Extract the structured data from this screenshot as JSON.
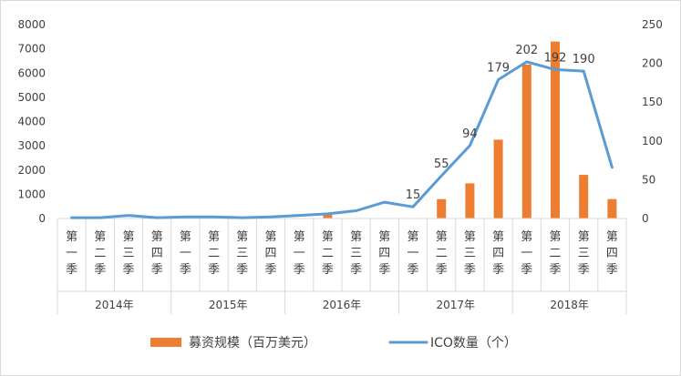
{
  "chart_data": {
    "type": "bar+line",
    "quarter_labels": [
      "第一季",
      "第二季",
      "第三季",
      "第四季"
    ],
    "years": [
      "2014年",
      "2015年",
      "2016年",
      "2017年",
      "2018年"
    ],
    "series": [
      {
        "name": "募资规模（百万美元）",
        "type": "bar",
        "axis": "left",
        "color": "#ED7D31",
        "values": [
          0,
          0,
          0,
          0,
          0,
          0,
          0,
          0,
          0,
          150,
          0,
          0,
          0,
          800,
          1450,
          3250,
          6350,
          7300,
          1800,
          800
        ]
      },
      {
        "name": "ICO数量（个）",
        "type": "line",
        "axis": "right",
        "color": "#5B9BD5",
        "values": [
          1,
          1,
          4,
          1,
          2,
          2,
          1,
          2,
          4,
          6,
          10,
          21,
          15,
          55,
          94,
          179,
          202,
          192,
          190,
          66
        ],
        "data_labels": [
          null,
          null,
          null,
          null,
          null,
          null,
          null,
          null,
          null,
          null,
          null,
          null,
          "15",
          "55",
          "94",
          "179",
          "202",
          "192",
          "190",
          null
        ]
      }
    ],
    "left_axis": {
      "ticks": [
        "0",
        "1000",
        "2000",
        "3000",
        "4000",
        "5000",
        "6000",
        "7000",
        "8000"
      ],
      "ylim": [
        0,
        8000
      ]
    },
    "right_axis": {
      "ticks": [
        "0",
        "50",
        "100",
        "150",
        "200",
        "250"
      ],
      "ylim": [
        0,
        250
      ]
    },
    "legend_position": "bottom",
    "grid": false
  }
}
